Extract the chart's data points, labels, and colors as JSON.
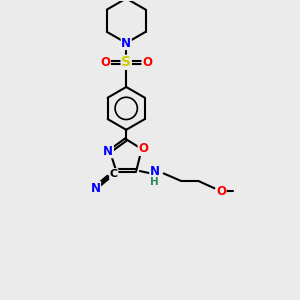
{
  "bg_color": "#ebebeb",
  "bond_color": "#000000",
  "atom_colors": {
    "N": "#0000ff",
    "O": "#ff0000",
    "S": "#cccc00",
    "C": "#000000",
    "H": "#2e8b57"
  },
  "line_width": 1.5,
  "font_size": 8.5
}
